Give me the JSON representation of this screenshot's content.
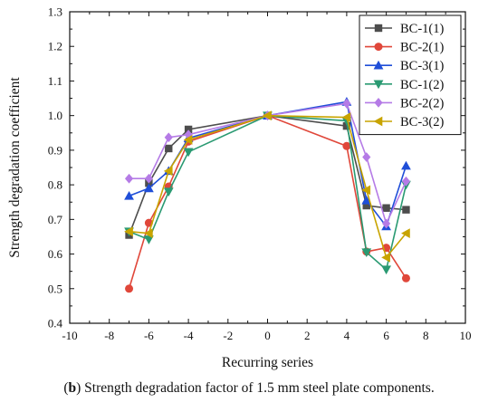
{
  "caption": {
    "prefix_open": "(",
    "prefix_letter": "b",
    "prefix_close": ")",
    "text": " Strength degradation factor of 1.5 mm steel plate components."
  },
  "chart_data": {
    "type": "line",
    "title": "",
    "xlabel": "Recurring series",
    "ylabel": "Strength degradation coefficient",
    "xlim": [
      -10,
      10
    ],
    "ylim": [
      0.4,
      1.3
    ],
    "xticks": [
      -10,
      -8,
      -6,
      -4,
      -2,
      0,
      2,
      4,
      6,
      8,
      10
    ],
    "yticks": [
      0.4,
      0.5,
      0.6,
      0.7,
      0.8,
      0.9,
      1.0,
      1.1,
      1.2,
      1.3
    ],
    "ytick_labels": [
      "0.4",
      "0.5",
      "0.6",
      "0.7",
      "0.8",
      "0.9",
      "1.0",
      "1.1",
      "1.2",
      "1.3"
    ],
    "grid": false,
    "legend_position": "top-right",
    "series": [
      {
        "name": "BC-1(1)",
        "color": "#4d4d4d",
        "marker": "square",
        "points": [
          [
            -7,
            0.655
          ],
          [
            -6,
            0.805
          ],
          [
            -5,
            0.905
          ],
          [
            -4,
            0.96
          ],
          [
            0,
            1.0
          ],
          [
            4,
            0.97
          ],
          [
            5,
            0.74
          ],
          [
            6,
            0.733
          ],
          [
            7,
            0.728
          ]
        ]
      },
      {
        "name": "BC-2(1)",
        "color": "#e0473a",
        "marker": "circle",
        "points": [
          [
            -7,
            0.5
          ],
          [
            -6,
            0.69
          ],
          [
            -5,
            0.795
          ],
          [
            -4,
            0.925
          ],
          [
            0,
            1.0
          ],
          [
            4,
            0.912
          ],
          [
            5,
            0.607
          ],
          [
            6,
            0.618
          ],
          [
            7,
            0.53
          ]
        ]
      },
      {
        "name": "BC-3(1)",
        "color": "#1f4ed8",
        "marker": "triangle-up",
        "points": [
          [
            -7,
            0.768
          ],
          [
            -6,
            0.79
          ],
          [
            -5,
            0.84
          ],
          [
            -4,
            0.935
          ],
          [
            0,
            1.0
          ],
          [
            4,
            1.04
          ],
          [
            5,
            0.755
          ],
          [
            6,
            0.68
          ],
          [
            7,
            0.855
          ]
        ]
      },
      {
        "name": "BC-1(2)",
        "color": "#2a9a72",
        "marker": "triangle-down",
        "points": [
          [
            -7,
            0.665
          ],
          [
            -6,
            0.642
          ],
          [
            -5,
            0.78
          ],
          [
            -4,
            0.895
          ],
          [
            0,
            1.0
          ],
          [
            4,
            0.985
          ],
          [
            5,
            0.605
          ],
          [
            6,
            0.555
          ],
          [
            7,
            0.8
          ]
        ]
      },
      {
        "name": "BC-2(2)",
        "color": "#b57be6",
        "marker": "diamond",
        "points": [
          [
            -7,
            0.818
          ],
          [
            -6,
            0.818
          ],
          [
            -5,
            0.937
          ],
          [
            -4,
            0.945
          ],
          [
            0,
            1.0
          ],
          [
            4,
            1.035
          ],
          [
            5,
            0.88
          ],
          [
            6,
            0.688
          ],
          [
            7,
            0.81
          ]
        ]
      },
      {
        "name": "BC-3(2)",
        "color": "#c8a400",
        "marker": "triangle-left",
        "points": [
          [
            -7,
            0.665
          ],
          [
            -6,
            0.66
          ],
          [
            -5,
            0.84
          ],
          [
            -4,
            0.93
          ],
          [
            0,
            1.0
          ],
          [
            4,
            0.995
          ],
          [
            5,
            0.785
          ],
          [
            6,
            0.59
          ],
          [
            7,
            0.66
          ]
        ]
      }
    ]
  }
}
